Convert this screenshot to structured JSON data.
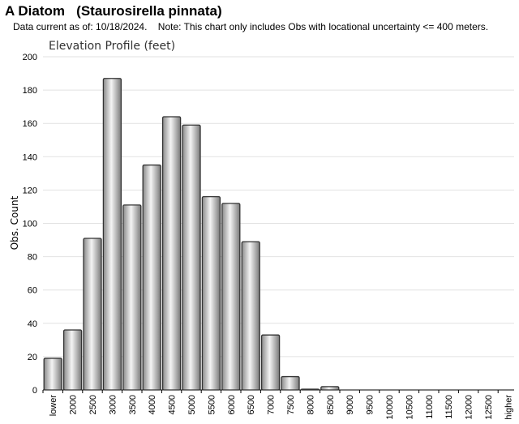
{
  "header": {
    "species": "A Diatom   (Staurosirella pinnata)",
    "note": "Data current as of: 10/18/2024.    Note: This chart only includes Obs with locational uncertainty <= 400 meters."
  },
  "chart_data": {
    "type": "bar",
    "title": "Elevation Profile (feet)",
    "xlabel": "",
    "ylabel": "Obs. Count",
    "ylim": [
      0,
      200
    ],
    "yticks": [
      0,
      20,
      40,
      60,
      80,
      100,
      120,
      140,
      160,
      180,
      200
    ],
    "grid": true,
    "categories": [
      "lower",
      "2000",
      "2500",
      "3000",
      "3500",
      "4000",
      "4500",
      "5000",
      "5500",
      "6000",
      "6500",
      "7000",
      "7500",
      "8000",
      "8500",
      "9000",
      "9500",
      "10000",
      "10500",
      "11000",
      "11500",
      "12000",
      "12500",
      "higher"
    ],
    "values": [
      19,
      36,
      91,
      187,
      111,
      135,
      164,
      159,
      116,
      112,
      89,
      33,
      8,
      0.5,
      2,
      0,
      0,
      0,
      0,
      0,
      0,
      0,
      0,
      0
    ]
  }
}
